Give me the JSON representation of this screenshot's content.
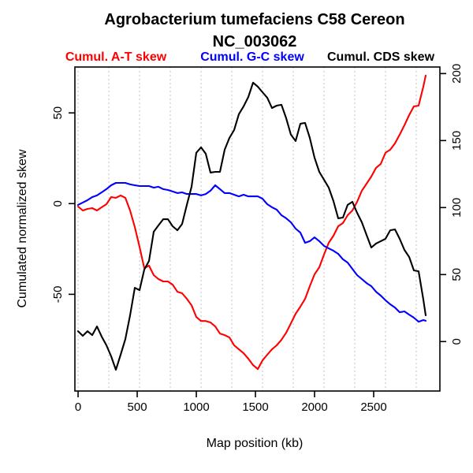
{
  "header": {
    "title_line1": "Agrobacterium tumefaciens C58 Cereon",
    "title_line2": "NC_003062"
  },
  "legend": {
    "items": [
      {
        "label": "Cumul. A-T skew",
        "color": "#ff0000"
      },
      {
        "label": "Cumul. G-C skew",
        "color": "#0000ff"
      },
      {
        "label": "Cumul. CDS skew",
        "color": "#000000"
      }
    ]
  },
  "axes": {
    "x": {
      "label": "Map position (kb)",
      "ticks": [
        0,
        500,
        1000,
        1500,
        2000,
        2500
      ]
    },
    "y_left": {
      "label": "Cumulated normalized skew",
      "ticks": [
        -50,
        0,
        50
      ]
    },
    "y_right": {
      "ticks": [
        0,
        50,
        100,
        150,
        200
      ]
    }
  },
  "chart_data": {
    "type": "line",
    "title": "Agrobacterium tumefaciens C58 Cereon",
    "subtitle": "NC_003062",
    "xlabel": "Map position (kb)",
    "ylabel_left": "Cumulated normalized skew",
    "x_unit": "kb",
    "xlim": [
      -27,
      3060
    ],
    "ylim_left": [
      -103.3,
      75.3
    ],
    "ylim_right": [
      -36.9,
      204.9
    ],
    "x_ticks": [
      0,
      500,
      1000,
      1500,
      2000,
      2500
    ],
    "y_ticks_left": [
      -50,
      0,
      50
    ],
    "y_ticks_right": [
      0,
      50,
      100,
      150,
      200
    ],
    "grid": "vertical-dotted",
    "x_gridlines_kb": [
      0,
      260,
      520,
      780,
      1040,
      1300,
      1560,
      1820,
      2080,
      2340,
      2600,
      2860
    ],
    "gridline_color": "#c3c3c3",
    "x_start_kb": 0,
    "x_step_kb": 40,
    "x_last_kb": 2940,
    "series": [
      {
        "name": "Cumul. A-T skew",
        "color": "#ff0000",
        "axis": "left",
        "values": [
          -1.6,
          -3.8,
          -2.9,
          -2.5,
          -3.8,
          -2.0,
          -0.3,
          3.6,
          3.2,
          4.5,
          3.2,
          -3.8,
          -12.9,
          -23.8,
          -35.5,
          -34.2,
          -39.4,
          -41.6,
          -42.9,
          -42.9,
          -44.7,
          -48.6,
          -49.4,
          -52.5,
          -56.0,
          -62.5,
          -64.7,
          -64.7,
          -65.5,
          -67.7,
          -71.6,
          -72.5,
          -73.8,
          -78.1,
          -80.3,
          -82.5,
          -85.5,
          -89.0,
          -91.2,
          -86.4,
          -83.3,
          -80.3,
          -78.1,
          -75.1,
          -71.2,
          -66.0,
          -60.7,
          -56.8,
          -52.5,
          -45.5,
          -39.0,
          -35.1,
          -28.1,
          -21.6,
          -17.7,
          -12.5,
          -10.7,
          -6.4,
          -3.8,
          1.0,
          7.1,
          11.0,
          14.9,
          19.7,
          21.9,
          28.0,
          29.7,
          33.2,
          38.0,
          43.2,
          48.8,
          53.6,
          54.0,
          64.5,
          70.6
        ]
      },
      {
        "name": "Cumul. G-C skew",
        "color": "#0000ff",
        "axis": "left",
        "values": [
          -0.7,
          0.6,
          1.9,
          3.6,
          4.5,
          6.2,
          8.0,
          10.1,
          11.4,
          11.4,
          11.4,
          10.6,
          10.1,
          9.7,
          9.7,
          9.7,
          8.8,
          9.3,
          8.0,
          7.5,
          6.7,
          5.8,
          6.2,
          5.3,
          5.3,
          5.3,
          4.5,
          5.3,
          7.1,
          10.1,
          8.0,
          5.8,
          5.8,
          4.9,
          4.0,
          4.9,
          4.0,
          4.0,
          4.0,
          2.7,
          -0.3,
          -2.0,
          -3.3,
          -6.4,
          -8.1,
          -10.3,
          -13.8,
          -16.0,
          -21.6,
          -20.7,
          -18.6,
          -20.7,
          -23.3,
          -24.7,
          -26.0,
          -27.7,
          -30.7,
          -32.5,
          -36.0,
          -39.4,
          -41.6,
          -43.8,
          -45.5,
          -48.6,
          -50.7,
          -53.3,
          -55.5,
          -57.3,
          -59.9,
          -59.4,
          -61.2,
          -62.9,
          -65.1,
          -64.2,
          -64.6
        ]
      },
      {
        "name": "Cumul. CDS skew",
        "color": "#000000",
        "axis": "left",
        "values": [
          -70.3,
          -72.9,
          -70.3,
          -72.5,
          -67.7,
          -73.3,
          -78.1,
          -84.2,
          -91.6,
          -83.3,
          -74.7,
          -61.6,
          -46.4,
          -47.7,
          -36.4,
          -31.6,
          -15.5,
          -12.0,
          -8.6,
          -8.6,
          -12.5,
          -14.7,
          -11.2,
          -0.7,
          9.3,
          28.0,
          31.0,
          27.5,
          17.1,
          17.5,
          17.5,
          29.7,
          36.2,
          40.6,
          49.3,
          53.6,
          58.8,
          66.7,
          64.5,
          61.4,
          58.4,
          52.7,
          54.0,
          54.5,
          47.1,
          38.0,
          34.5,
          44.0,
          44.5,
          36.2,
          25.3,
          17.5,
          13.2,
          8.8,
          1.4,
          -8.1,
          -7.7,
          -0.7,
          1.0,
          -5.1,
          -10.3,
          -17.3,
          -24.2,
          -22.0,
          -20.7,
          -19.4,
          -14.7,
          -14.2,
          -19.4,
          -25.5,
          -29.4,
          -36.8,
          -37.3,
          -52.9,
          -61.6
        ]
      }
    ]
  }
}
